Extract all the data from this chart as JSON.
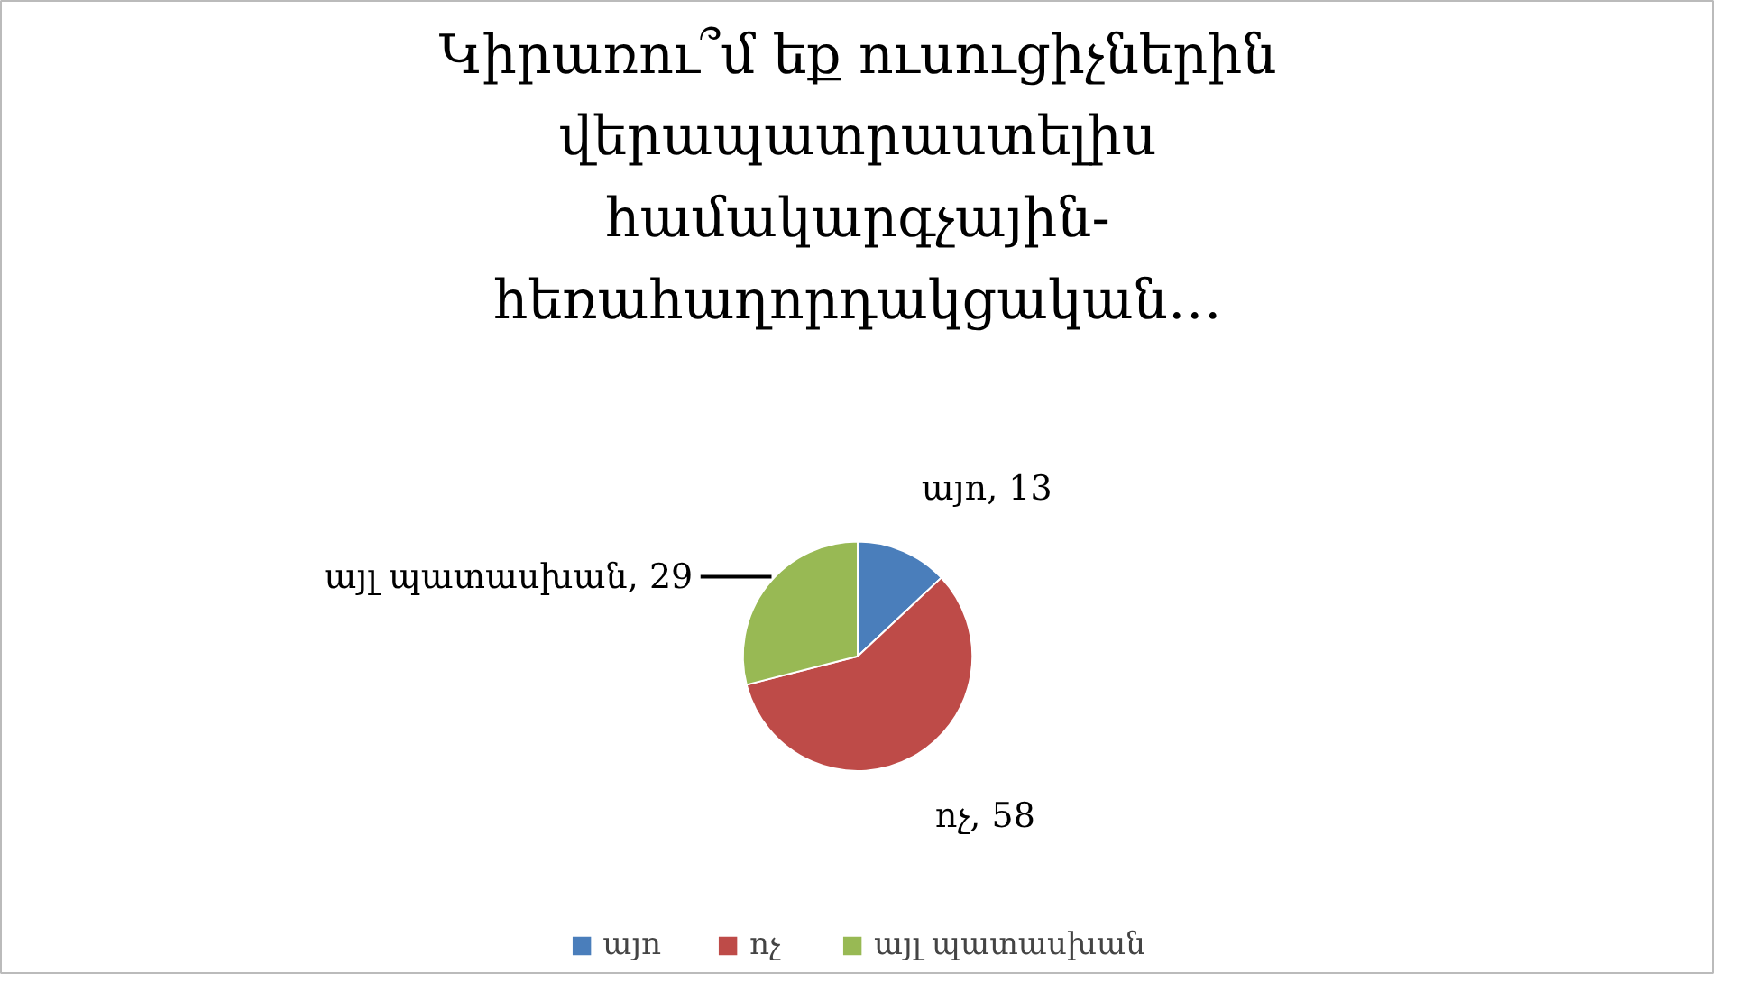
{
  "chart_data": {
    "type": "pie",
    "title": "Կիրառու՞մ եք ուսուցիչներին վերապատրաստելիս համակարգչային-հեռահաղորդակցական…",
    "categories": [
      "այո",
      "ոչ",
      "այլ պատասխան"
    ],
    "values": [
      13,
      58,
      29
    ],
    "colors": [
      "#4a7ebb",
      "#be4b48",
      "#98b954"
    ],
    "value_labels": [
      "այո, 13",
      "ոչ, 58",
      "այլ պատասխան, 29"
    ],
    "legend": "bottom"
  }
}
